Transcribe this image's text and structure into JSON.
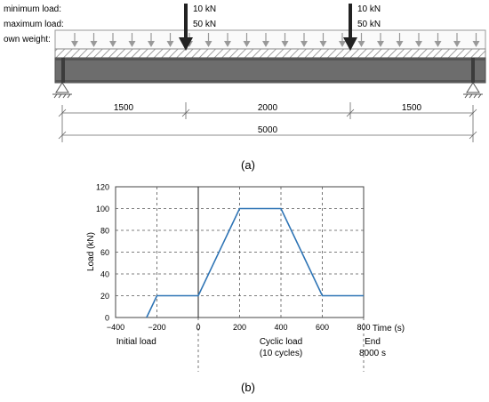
{
  "beam": {
    "labels": {
      "min_load": "minimum load:",
      "max_load": "maximum load:",
      "own_weight": "own weight:"
    },
    "point_loads": [
      {
        "min": "10 kN",
        "max": "50 kN"
      },
      {
        "min": "10 kN",
        "max": "50 kN"
      }
    ],
    "span_dims": [
      "1500",
      "2000",
      "1500"
    ],
    "total_dim": "5000",
    "caption": "(a)"
  },
  "chart_data": {
    "type": "line",
    "xlabel": "Time (s)",
    "ylabel": "Load (kN)",
    "xlim": [
      -400,
      800
    ],
    "ylim": [
      0,
      120
    ],
    "x_ticks": [
      "−400",
      "−200",
      "0",
      "200",
      "400",
      "600",
      "800"
    ],
    "y_ticks": [
      "0",
      "20",
      "40",
      "60",
      "80",
      "100",
      "120"
    ],
    "x": [
      -250,
      -200,
      0,
      200,
      400,
      600,
      800
    ],
    "y": [
      0,
      20,
      20,
      100,
      100,
      20,
      20
    ],
    "line_color": "#2e74b5",
    "grid": true,
    "phase_labels": [
      {
        "lines": [
          "Initial load"
        ]
      },
      {
        "lines": [
          "Cyclic load",
          "(10 cycles)"
        ]
      },
      {
        "lines": [
          "End",
          "8000 s"
        ]
      }
    ],
    "caption": "(b)"
  }
}
